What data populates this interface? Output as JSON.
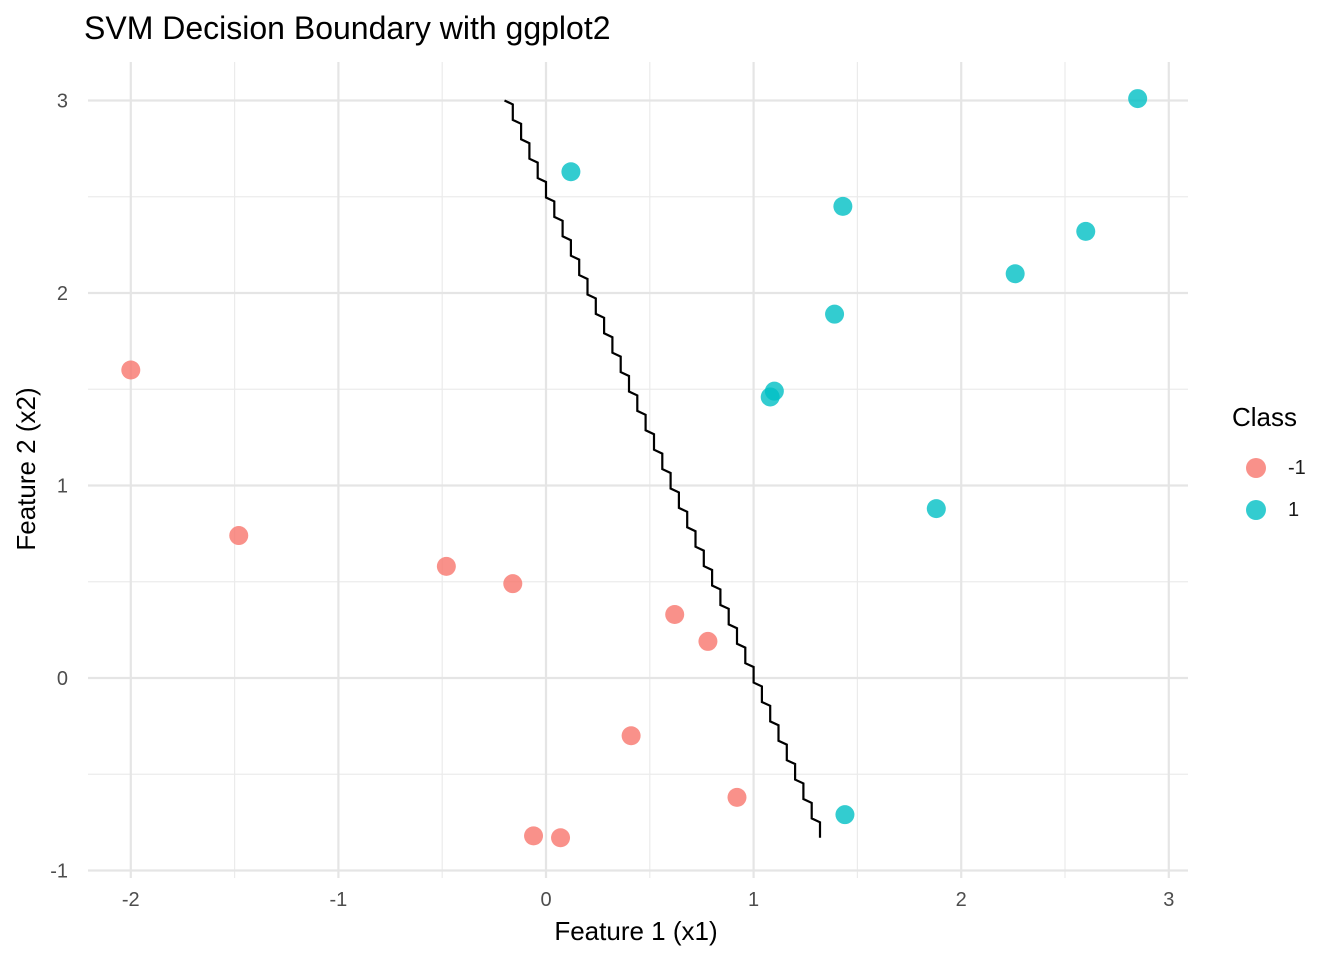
{
  "chart_data": {
    "type": "scatter",
    "title": "SVM Decision Boundary with ggplot2",
    "xlabel": "Feature 1 (x1)",
    "ylabel": "Feature 2 (x2)",
    "xlim": [
      -2.2,
      3.05
    ],
    "ylim": [
      -1.05,
      3.2
    ],
    "xticks": [
      -2,
      -1,
      0,
      1,
      2,
      3
    ],
    "yticks": [
      -1,
      0,
      1,
      2,
      3
    ],
    "xtick_labels": [
      "-2",
      "-1",
      "0",
      "1",
      "2",
      "3"
    ],
    "ytick_labels": [
      "-1",
      "0",
      "1",
      "2",
      "3"
    ],
    "grid": true,
    "legend": {
      "title": "Class",
      "placement": "right",
      "entries": [
        {
          "label": "-1",
          "color": "#F8766D"
        },
        {
          "label": "1",
          "color": "#00BFC4"
        }
      ]
    },
    "series": [
      {
        "name": "-1",
        "color": "#F8766D",
        "points": [
          {
            "x": -2.0,
            "y": 1.6
          },
          {
            "x": -1.48,
            "y": 0.74
          },
          {
            "x": -0.48,
            "y": 0.58
          },
          {
            "x": -0.16,
            "y": 0.49
          },
          {
            "x": 0.62,
            "y": 0.33
          },
          {
            "x": 0.78,
            "y": 0.19
          },
          {
            "x": 0.41,
            "y": -0.3
          },
          {
            "x": 0.92,
            "y": -0.62
          },
          {
            "x": -0.06,
            "y": -0.82
          },
          {
            "x": 0.07,
            "y": -0.83
          }
        ]
      },
      {
        "name": "1",
        "color": "#00BFC4",
        "points": [
          {
            "x": 0.12,
            "y": 2.63
          },
          {
            "x": 1.43,
            "y": 2.45
          },
          {
            "x": 2.85,
            "y": 3.01
          },
          {
            "x": 2.6,
            "y": 2.32
          },
          {
            "x": 2.26,
            "y": 2.1
          },
          {
            "x": 1.39,
            "y": 1.89
          },
          {
            "x": 1.1,
            "y": 1.49
          },
          {
            "x": 1.08,
            "y": 1.46
          },
          {
            "x": 1.88,
            "y": 0.88
          },
          {
            "x": 1.44,
            "y": -0.71
          }
        ]
      }
    ],
    "boundary": {
      "color": "#000000",
      "start": {
        "x": -0.2,
        "y": 3.0
      },
      "end": {
        "x": 1.32,
        "y": -0.83
      }
    }
  }
}
